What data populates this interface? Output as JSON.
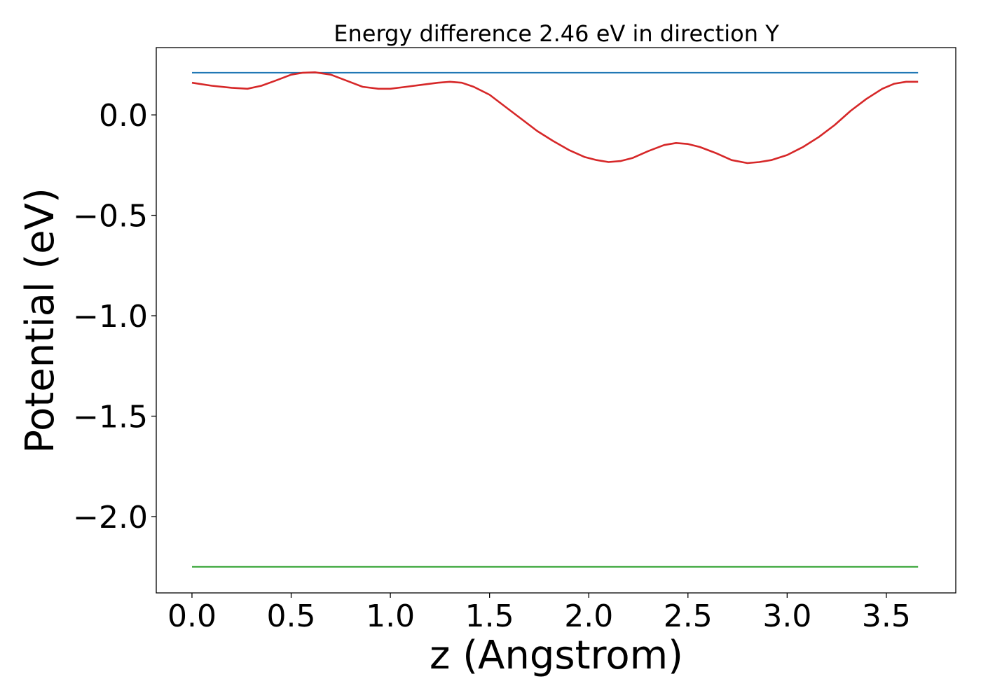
{
  "chart_data": {
    "type": "line",
    "title": "Energy difference 2.46 eV in direction Y",
    "xlabel": "z (Angstrom)",
    "ylabel": "Potential (eV)",
    "xlim": [
      -0.18,
      3.85
    ],
    "ylim": [
      -2.38,
      0.335
    ],
    "xticks": [
      0.0,
      0.5,
      1.0,
      1.5,
      2.0,
      2.5,
      3.0,
      3.5
    ],
    "xtick_labels": [
      "0.0",
      "0.5",
      "1.0",
      "1.5",
      "2.0",
      "2.5",
      "3.0",
      "3.5"
    ],
    "yticks": [
      0.0,
      -0.5,
      -1.0,
      -1.5,
      -2.0
    ],
    "ytick_labels": [
      "0.0",
      "−0.5",
      "−1.0",
      "−1.5",
      "−2.0"
    ],
    "grid": false,
    "series": [
      {
        "color": "#1f77b4",
        "x": [
          0.0,
          3.66
        ],
        "y": [
          0.21,
          0.21
        ]
      },
      {
        "color": "#2ca02c",
        "x": [
          0.0,
          3.66
        ],
        "y": [
          -2.25,
          -2.25
        ]
      },
      {
        "color": "#d62728",
        "x": [
          0.0,
          0.1,
          0.2,
          0.28,
          0.35,
          0.42,
          0.5,
          0.56,
          0.62,
          0.7,
          0.78,
          0.86,
          0.94,
          1.0,
          1.08,
          1.16,
          1.24,
          1.3,
          1.36,
          1.42,
          1.5,
          1.58,
          1.66,
          1.74,
          1.82,
          1.9,
          1.98,
          2.04,
          2.1,
          2.16,
          2.22,
          2.3,
          2.38,
          2.44,
          2.5,
          2.56,
          2.64,
          2.72,
          2.8,
          2.86,
          2.92,
          3.0,
          3.08,
          3.16,
          3.24,
          3.32,
          3.4,
          3.48,
          3.54,
          3.6,
          3.66
        ],
        "y": [
          0.16,
          0.145,
          0.135,
          0.13,
          0.145,
          0.17,
          0.2,
          0.21,
          0.212,
          0.2,
          0.17,
          0.14,
          0.13,
          0.13,
          0.14,
          0.15,
          0.16,
          0.165,
          0.16,
          0.14,
          0.1,
          0.04,
          -0.02,
          -0.08,
          -0.13,
          -0.175,
          -0.21,
          -0.225,
          -0.235,
          -0.23,
          -0.215,
          -0.18,
          -0.15,
          -0.14,
          -0.145,
          -0.16,
          -0.19,
          -0.225,
          -0.24,
          -0.235,
          -0.225,
          -0.2,
          -0.16,
          -0.11,
          -0.05,
          0.02,
          0.08,
          0.13,
          0.155,
          0.165,
          0.165
        ]
      }
    ]
  }
}
